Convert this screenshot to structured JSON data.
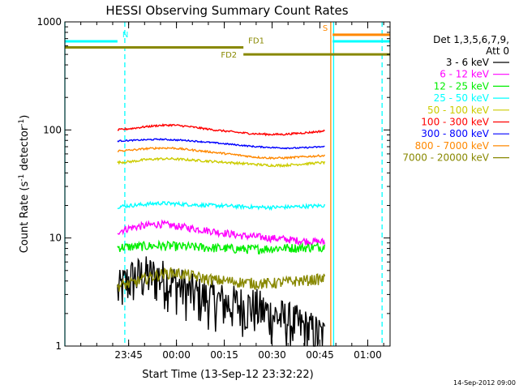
{
  "chart_data": {
    "type": "line",
    "title": "HESSI Observing Summary Count Rates",
    "xlabel": "Start Time (13-Sep-12 23:32:22)",
    "ylabel_main": "Count Rate (s",
    "ylabel_sup1": "-1",
    "ylabel_mid": " detector",
    "ylabel_sup2": "-1",
    "ylabel_end": ")",
    "yscale": "log",
    "ylim": [
      1,
      1000
    ],
    "xlim_minutes": [
      -20,
      82
    ],
    "x_ticks": [
      {
        "label": "23:45",
        "min": 0
      },
      {
        "label": "00:00",
        "min": 15
      },
      {
        "label": "00:15",
        "min": 30
      },
      {
        "label": "00:30",
        "min": 45
      },
      {
        "label": "00:45",
        "min": 60
      },
      {
        "label": "01:00",
        "min": 75
      }
    ],
    "y_ticks": [
      {
        "label": "1",
        "value": 1
      },
      {
        "label": "10",
        "value": 10
      },
      {
        "label": "100",
        "value": 100
      },
      {
        "label": "1000",
        "value": 1000
      }
    ],
    "legend_title_1": "Det 1,3,5,6,7,9,",
    "legend_title_2": "Att 0",
    "legend_placement": "right",
    "data_window_minutes": [
      -3.5,
      61.5
    ],
    "series": [
      {
        "name": "3 - 6 keV",
        "color": "#000000",
        "values": [
          3.2,
          4.3,
          4.6,
          4.4,
          3.9,
          3.3,
          2.9,
          2.7,
          2.5,
          2.4,
          2.3,
          2.0,
          1.8,
          1.6,
          1.4,
          1.2
        ],
        "noise": 0.5
      },
      {
        "name": "6 - 12 keV",
        "color": "#ff00ff",
        "values": [
          11.5,
          12.5,
          13.0,
          13.5,
          13.0,
          12.5,
          12.0,
          11.5,
          11.0,
          10.5,
          10.3,
          10.0,
          9.8,
          9.5,
          9.3,
          9.2
        ],
        "noise": 0.08
      },
      {
        "name": "12 - 25 keV",
        "color": "#00ee00",
        "values": [
          8.2,
          8.3,
          8.4,
          8.5,
          8.4,
          8.3,
          8.2,
          8.1,
          8.0,
          7.9,
          7.9,
          8.0,
          8.1,
          8.1,
          8.2,
          8.3
        ],
        "noise": 0.1
      },
      {
        "name": "25 - 50 keV",
        "color": "#00ffff",
        "values": [
          19.5,
          20.0,
          20.5,
          21.0,
          20.8,
          20.5,
          20.2,
          20.0,
          19.8,
          19.5,
          19.3,
          19.2,
          19.3,
          19.5,
          19.7,
          20.0
        ],
        "noise": 0.04
      },
      {
        "name": "50 - 100 keV",
        "color": "#cccc00",
        "values": [
          50,
          51,
          53,
          54,
          54,
          53,
          52,
          51,
          50,
          49,
          48,
          47,
          47,
          48,
          49,
          50
        ],
        "noise": 0.025
      },
      {
        "name": "100 - 300 keV",
        "color": "#ff0000",
        "values": [
          100,
          103,
          107,
          110,
          111,
          108,
          104,
          100,
          97,
          94,
          92,
          91,
          91,
          93,
          95,
          98
        ],
        "noise": 0.02
      },
      {
        "name": "300 - 800 keV",
        "color": "#0000ff",
        "values": [
          79,
          80,
          81,
          82,
          81,
          80,
          78,
          76,
          74,
          72,
          70,
          69,
          68,
          68,
          69,
          70
        ],
        "noise": 0.015
      },
      {
        "name": "800 - 7000 keV",
        "color": "#ff8800",
        "values": [
          64,
          65,
          67,
          68,
          68,
          66,
          64,
          62,
          60,
          58,
          56,
          55,
          55,
          56,
          57,
          58
        ],
        "noise": 0.02
      },
      {
        "name": "7000 - 20000 keV",
        "color": "#888800",
        "values": [
          3.6,
          3.8,
          4.2,
          4.6,
          4.8,
          4.6,
          4.3,
          4.1,
          4.0,
          3.9,
          3.8,
          3.8,
          3.9,
          4.0,
          4.1,
          4.2
        ],
        "noise": 0.12
      }
    ],
    "attenuator_bars": [
      {
        "label": "FD1",
        "color": "#888800",
        "y_value": 580,
        "x_start": -20,
        "x_end": 36
      },
      {
        "label": "FD2",
        "color": "#888800",
        "y_value": 500,
        "x_start": 36,
        "x_end": 82
      },
      {
        "label": "N",
        "color": "#00ffff",
        "y_value": 660,
        "x_start": -20,
        "x_end": -3.5
      },
      {
        "label": "S",
        "color": "#ff8800",
        "y_value": 760,
        "x_start": 64,
        "x_end": 82
      },
      {
        "label": "",
        "color": "#00ffff",
        "y_value": 660,
        "x_start": 64,
        "x_end": 82
      }
    ],
    "vertical_markers": [
      {
        "min": -20,
        "color": "#00ffff",
        "style": "solid"
      },
      {
        "min": -1.2,
        "color": "#00ffff",
        "style": "dashed"
      },
      {
        "min": 63.4,
        "color": "#ff8800",
        "style": "solid"
      },
      {
        "min": 64.3,
        "color": "#00ffff",
        "style": "solid"
      },
      {
        "min": 79.5,
        "color": "#00ffff",
        "style": "dashed"
      }
    ]
  },
  "footer_date": "14-Sep-2012 09:00"
}
